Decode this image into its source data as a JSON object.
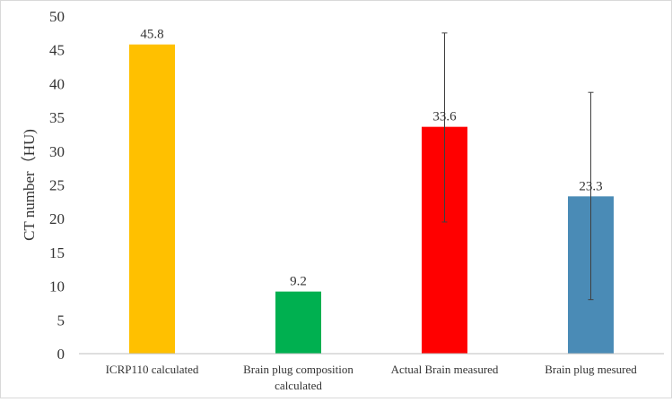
{
  "chart_data": {
    "type": "bar",
    "title": "",
    "xlabel": "",
    "ylabel": "CT number（HU)",
    "ylim": [
      0,
      50
    ],
    "yticks": [
      0,
      5,
      10,
      15,
      20,
      25,
      30,
      35,
      40,
      45,
      50
    ],
    "grid": false,
    "legend": "none",
    "categories": [
      [
        "ICRP110 calculated"
      ],
      [
        "Brain plug composition",
        "calculated"
      ],
      [
        "Actual Brain measured"
      ],
      [
        "Brain plug mesured"
      ]
    ],
    "values": [
      45.8,
      9.2,
      33.6,
      23.3
    ],
    "data_labels": [
      "45.8",
      "9.2",
      "33.6",
      "23.3"
    ],
    "error_bars": [
      null,
      null,
      {
        "low": 19.5,
        "high": 47.5
      },
      {
        "low": 8.0,
        "high": 38.7
      }
    ],
    "colors": [
      "#FFC000",
      "#00B050",
      "#FF0000",
      "#4A8BB6"
    ],
    "axis_color": "#bfbfbf",
    "error_bar_color": "#404040"
  }
}
